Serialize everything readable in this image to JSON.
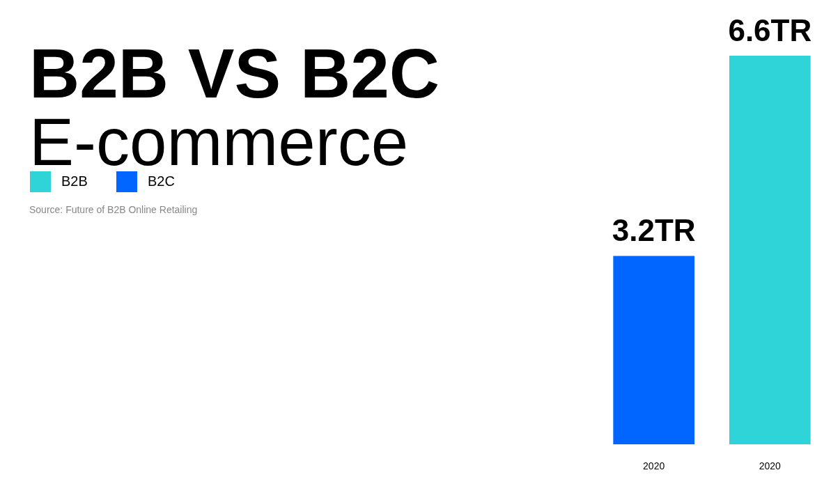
{
  "chart_data": {
    "type": "bar",
    "title": "B2B VS B2C",
    "subtitle": "E-commerce",
    "annotations": [
      "Source: Future of B2B Online Retailing"
    ],
    "categories": [
      "2020",
      "2020"
    ],
    "series": [
      {
        "name": "B2B",
        "color": "#2fd4d8",
        "values": [
          null,
          6.6
        ],
        "value_labels": [
          null,
          "6.6TR"
        ]
      },
      {
        "name": "B2C",
        "color": "#0066ff",
        "values": [
          3.2,
          null
        ],
        "value_labels": [
          "3.2TR",
          null
        ]
      }
    ],
    "legend": "top left",
    "tick_labels": "x",
    "grid": false
  }
}
